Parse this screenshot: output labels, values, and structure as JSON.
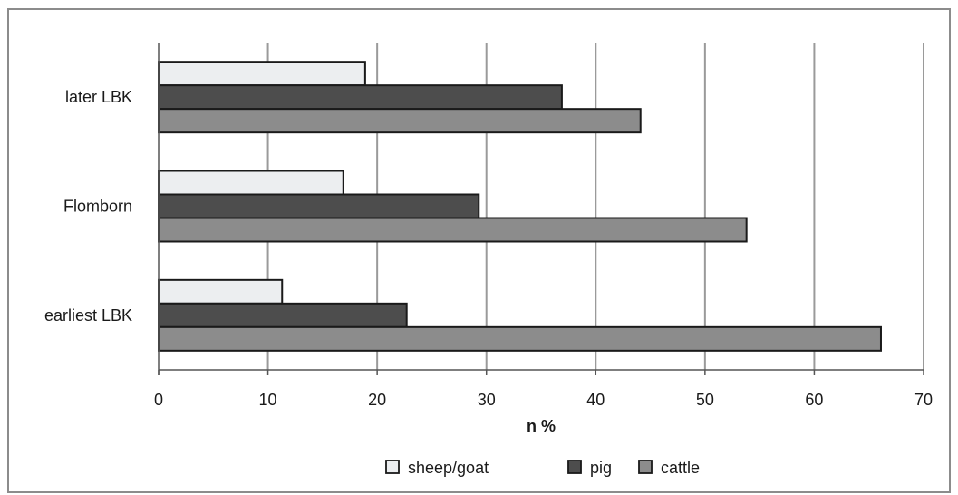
{
  "chart_data": {
    "type": "bar",
    "orientation": "horizontal",
    "categories": [
      "earliest LBK",
      "Flomborn",
      "later LBK"
    ],
    "series": [
      {
        "name": "sheep/goat",
        "values": [
          11.3,
          16.9,
          18.9
        ],
        "color": "#eceef0"
      },
      {
        "name": "pig",
        "values": [
          22.7,
          29.3,
          36.9
        ],
        "color": "#4d4d4d"
      },
      {
        "name": "cattle",
        "values": [
          66.1,
          53.8,
          44.1
        ],
        "color": "#8c8c8c"
      }
    ],
    "title": "",
    "xlabel": "n %",
    "ylabel": "",
    "xlim": [
      0,
      70
    ],
    "xticks": [
      0,
      10,
      20,
      30,
      40,
      50,
      60,
      70
    ],
    "grid": "vertical",
    "legend": "bottom"
  }
}
